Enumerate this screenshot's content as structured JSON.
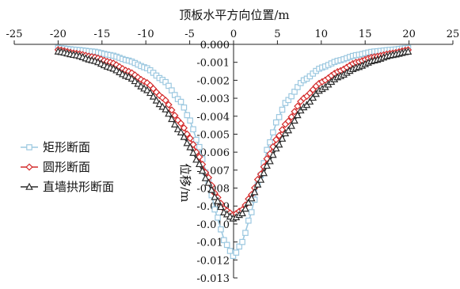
{
  "chart_data": {
    "type": "line",
    "title": "",
    "xlabel": "顶板水平方向位置/m",
    "ylabel": "位移/m",
    "xlim": [
      -25,
      25
    ],
    "ylim": [
      -0.013,
      0.0
    ],
    "x_axis_position": "top",
    "y_axis_position": "x=0",
    "grid": false,
    "legend_position": "left-middle",
    "x_ticks": [
      "-25",
      "-20",
      "-15",
      "-10",
      "-5",
      "0",
      "5",
      "10",
      "15",
      "20",
      "25"
    ],
    "y_ticks": [
      "0.000",
      "-0.001",
      "-0.002",
      "-0.003",
      "-0.004",
      "-0.005",
      "-0.006",
      "-0.007",
      "-0.008",
      "-0.009",
      "-0.010",
      "-0.011",
      "-0.012",
      "-0.013"
    ],
    "series": [
      {
        "name": "矩形断面",
        "marker": "square",
        "color": "#9cc8e0",
        "x": [
          -20,
          -18,
          -16,
          -14,
          -12,
          -10,
          -8,
          -6,
          -5,
          -4,
          -3,
          -2,
          -1,
          0,
          1,
          2,
          3,
          4,
          5,
          6,
          8,
          10,
          12,
          14,
          16,
          18,
          20
        ],
        "y": [
          -0.0002,
          -0.0003,
          -0.0004,
          -0.0006,
          -0.0009,
          -0.0013,
          -0.002,
          -0.0032,
          -0.0042,
          -0.0056,
          -0.0074,
          -0.0094,
          -0.011,
          -0.0118,
          -0.011,
          -0.0094,
          -0.0074,
          -0.0056,
          -0.0042,
          -0.0032,
          -0.002,
          -0.0013,
          -0.0009,
          -0.0006,
          -0.0004,
          -0.0003,
          -0.0002
        ]
      },
      {
        "name": "圆形断面",
        "marker": "diamond",
        "color": "#d42a2a",
        "x": [
          -20,
          -18,
          -16,
          -14,
          -12,
          -10,
          -8,
          -6,
          -5,
          -4,
          -3,
          -2,
          -1,
          0,
          1,
          2,
          3,
          4,
          5,
          6,
          8,
          10,
          12,
          14,
          16,
          18,
          20
        ],
        "y": [
          -0.0003,
          -0.0005,
          -0.0007,
          -0.001,
          -0.0015,
          -0.0021,
          -0.003,
          -0.0044,
          -0.0052,
          -0.0062,
          -0.0073,
          -0.0084,
          -0.0092,
          -0.0095,
          -0.0092,
          -0.0084,
          -0.0073,
          -0.0062,
          -0.0052,
          -0.0044,
          -0.003,
          -0.0021,
          -0.0015,
          -0.001,
          -0.0007,
          -0.0005,
          -0.0003
        ]
      },
      {
        "name": "直墙拱形断面",
        "marker": "triangle",
        "color": "#2b2b2b",
        "x": [
          -20,
          -18,
          -16,
          -14,
          -12,
          -10,
          -8,
          -6,
          -5,
          -4,
          -3,
          -2,
          -1,
          0,
          1,
          2,
          3,
          4,
          5,
          6,
          8,
          10,
          12,
          14,
          16,
          18,
          20
        ],
        "y": [
          -0.0004,
          -0.0006,
          -0.0009,
          -0.0013,
          -0.0018,
          -0.0025,
          -0.0035,
          -0.0049,
          -0.0057,
          -0.0066,
          -0.0076,
          -0.0086,
          -0.0094,
          -0.0097,
          -0.0094,
          -0.0086,
          -0.0076,
          -0.0066,
          -0.0057,
          -0.0049,
          -0.0035,
          -0.0025,
          -0.0018,
          -0.0013,
          -0.0009,
          -0.0006,
          -0.0004
        ]
      }
    ]
  }
}
